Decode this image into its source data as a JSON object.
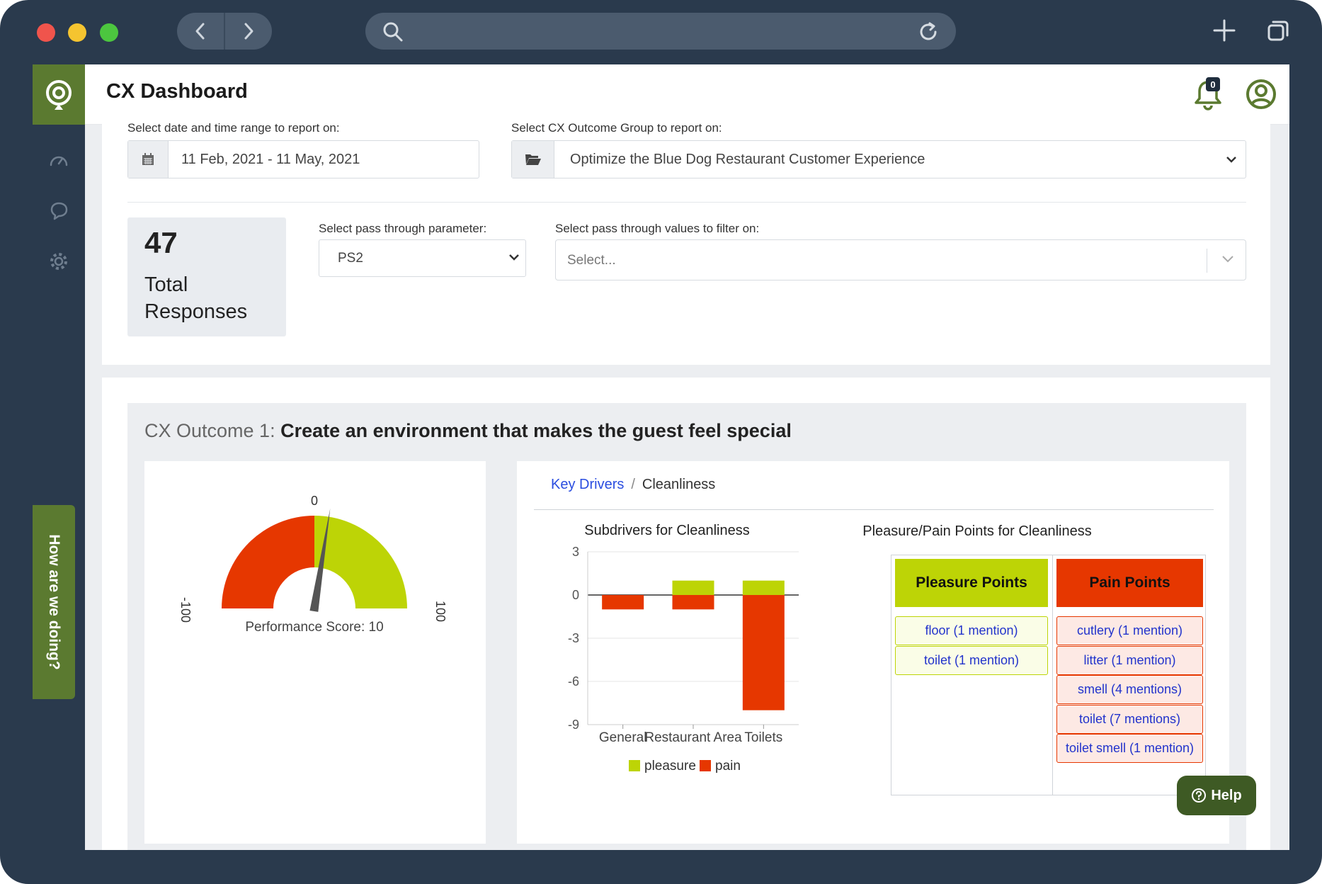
{
  "app": {
    "title": "CX Dashboard",
    "notification_count": "0",
    "feedback_tab": "How are we doing?",
    "help_label": "Help"
  },
  "filters": {
    "date_label": "Select date and time range to report on:",
    "date_value": "11 Feb, 2021 - 11 May, 2021",
    "group_label": "Select CX Outcome Group to report on:",
    "group_value": "Optimize the Blue Dog Restaurant Customer Experience",
    "pass_param_label": "Select pass through parameter:",
    "pass_param_value": "PS2",
    "pass_values_label": "Select pass through values to filter on:",
    "pass_values_placeholder": "Select..."
  },
  "summary": {
    "total_responses": "47",
    "total_label": "Total Responses"
  },
  "outcome": {
    "prefix": "CX Outcome 1:",
    "title": "Create an environment that makes the guest feel special"
  },
  "gauge": {
    "min_label": "-100",
    "zero_label": "0",
    "max_label": "100",
    "score_label": "Performance Score: 10",
    "score": 10,
    "min": -100,
    "max": 100,
    "neg_color": "#e63700",
    "pos_color": "#bdd406"
  },
  "breadcrumb": {
    "root": "Key Drivers",
    "current": "Cleanliness"
  },
  "chart_data": {
    "type": "bar",
    "title": "Subdrivers for Cleanliness",
    "categories": [
      "General",
      "Restaurant Area",
      "Toilets"
    ],
    "series": [
      {
        "name": "pleasure",
        "color": "#bdd406",
        "values": [
          0,
          1,
          1
        ]
      },
      {
        "name": "pain",
        "color": "#e63700",
        "values": [
          -1,
          -1,
          -8
        ]
      }
    ],
    "yticks": [
      3,
      0,
      -3,
      -6,
      -9
    ],
    "ylim": [
      -9,
      3
    ],
    "grid": true,
    "stacked": true,
    "legend": "bottom"
  },
  "pleasure_pain": {
    "title": "Pleasure/Pain Points for Cleanliness",
    "pleasure_header": "Pleasure Points",
    "pain_header": "Pain Points",
    "pleasure_items": [
      "floor (1 mention)",
      "toilet (1 mention)"
    ],
    "pain_items": [
      "cutlery (1 mention)",
      "litter (1 mention)",
      "smell (4 mentions)",
      "toilet (7 mentions)",
      "toilet smell (1 mention)"
    ]
  }
}
